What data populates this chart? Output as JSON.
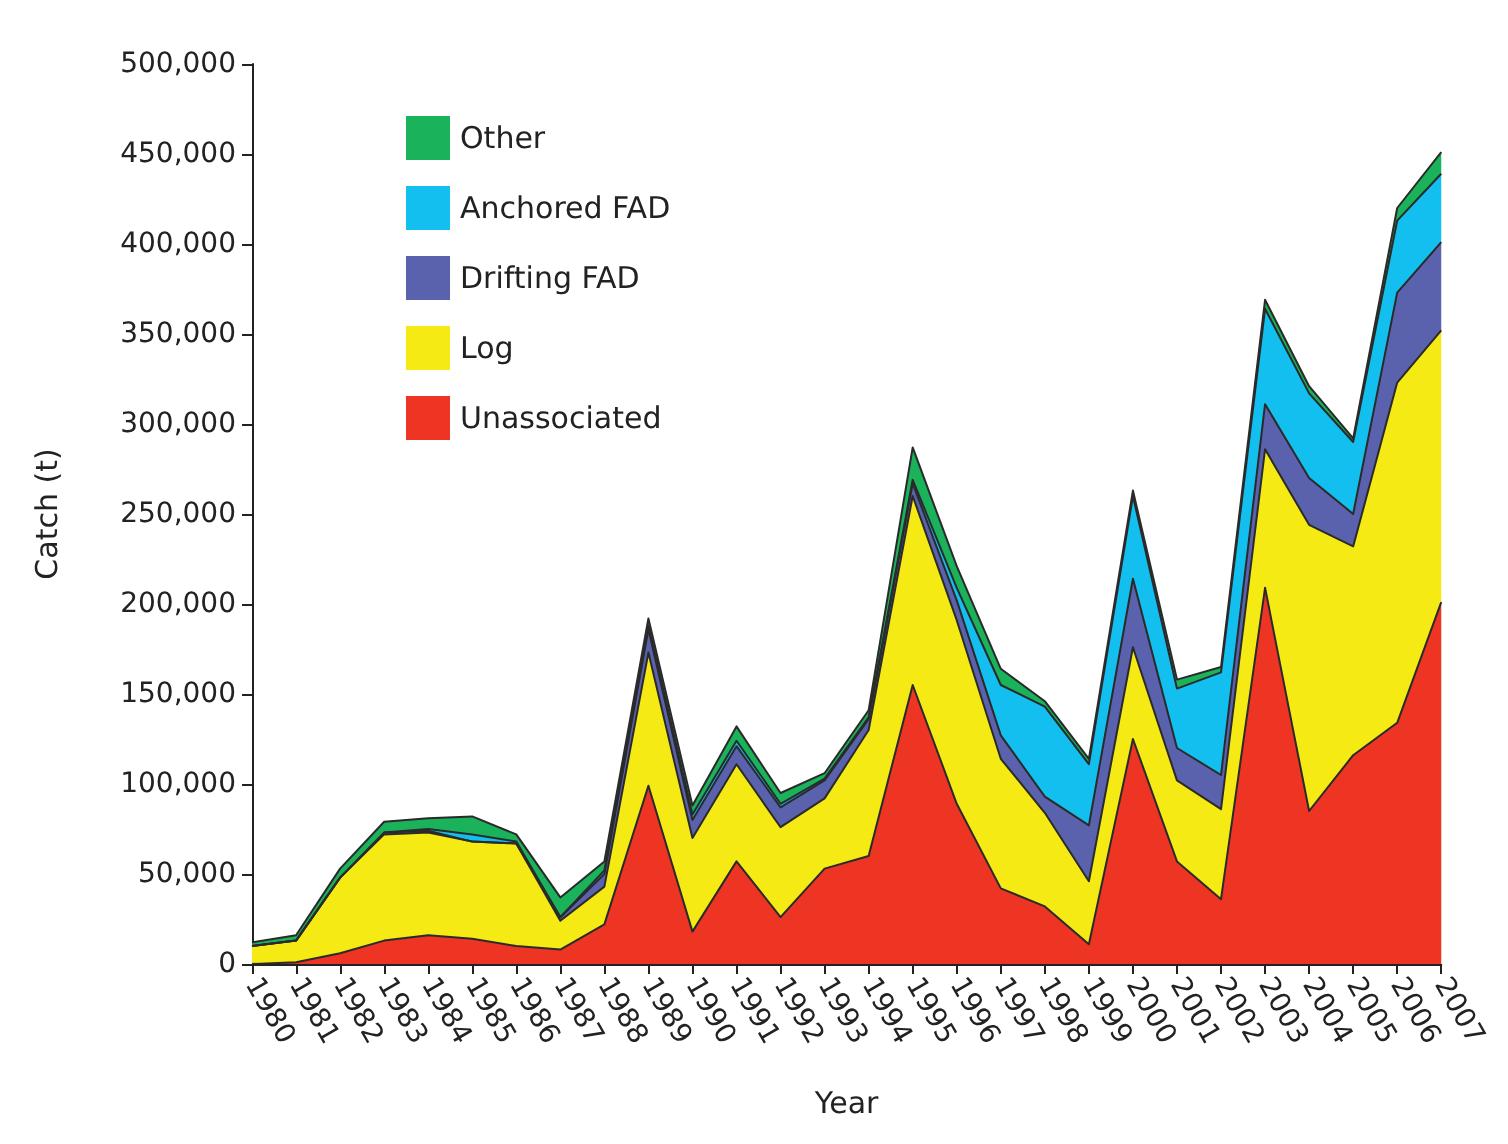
{
  "chart_data": {
    "type": "area",
    "stacked": true,
    "xlabel": "Year",
    "ylabel": "Catch (t)",
    "categories": [
      "1980",
      "1981",
      "1982",
      "1983",
      "1984",
      "1985",
      "1986",
      "1987",
      "1988",
      "1989",
      "1990",
      "1991",
      "1992",
      "1993",
      "1994",
      "1995",
      "1996",
      "1997",
      "1998",
      "1999",
      "2000",
      "2001",
      "2002",
      "2003",
      "2004",
      "2005",
      "2006",
      "2007"
    ],
    "series": [
      {
        "name": "Unassociated",
        "color": "#ee3524",
        "values": [
          0,
          1000,
          6000,
          13000,
          16000,
          14000,
          10000,
          8000,
          22000,
          99000,
          18000,
          57000,
          26000,
          53000,
          60000,
          155000,
          89000,
          42000,
          32000,
          11000,
          125000,
          57000,
          36000,
          209000,
          85000,
          116000,
          134000,
          201000
        ]
      },
      {
        "name": "Log",
        "color": "#f5ea14",
        "values": [
          10000,
          12000,
          42000,
          59000,
          57000,
          54000,
          57000,
          16000,
          21000,
          74000,
          52000,
          54000,
          50000,
          39000,
          70000,
          105000,
          102000,
          72000,
          52000,
          35000,
          51000,
          45000,
          50000,
          77000,
          159000,
          116000,
          189000,
          151000
        ]
      },
      {
        "name": "Drifting FAD",
        "color": "#5b62ad",
        "values": [
          0,
          0,
          0,
          1000,
          1000,
          0,
          0,
          2000,
          7000,
          13000,
          10000,
          10000,
          11000,
          10000,
          6000,
          7000,
          11000,
          13000,
          9000,
          31000,
          38000,
          18000,
          19000,
          25000,
          26000,
          18000,
          50000,
          49000
        ]
      },
      {
        "name": "Anchored FAD",
        "color": "#12bfee",
        "values": [
          0,
          0,
          0,
          0,
          1000,
          4000,
          1000,
          0,
          2000,
          2000,
          3000,
          3000,
          2000,
          1000,
          1000,
          2000,
          7000,
          28000,
          50000,
          34000,
          46000,
          33000,
          57000,
          53000,
          47000,
          40000,
          40000,
          38000
        ]
      },
      {
        "name": "Other",
        "color": "#1ab25a",
        "values": [
          2000,
          3000,
          5000,
          6000,
          6000,
          10000,
          4000,
          11000,
          5000,
          4000,
          5000,
          8000,
          6000,
          3000,
          4000,
          18000,
          12000,
          9000,
          3000,
          3000,
          3000,
          5000,
          3000,
          5000,
          4000,
          2000,
          7000,
          12000
        ]
      }
    ],
    "ylim": [
      0,
      500000
    ],
    "yticks": [
      {
        "value": 0,
        "label": "0"
      },
      {
        "value": 50000,
        "label": "50,000"
      },
      {
        "value": 100000,
        "label": "100,000"
      },
      {
        "value": 150000,
        "label": "150,000"
      },
      {
        "value": 200000,
        "label": "200,000"
      },
      {
        "value": 250000,
        "label": "250,000"
      },
      {
        "value": 300000,
        "label": "300,000"
      },
      {
        "value": 350000,
        "label": "350,000"
      },
      {
        "value": 400000,
        "label": "400,000"
      },
      {
        "value": 450000,
        "label": "450,000"
      },
      {
        "value": 500000,
        "label": "500,000"
      }
    ],
    "grid": false,
    "legend": "top left",
    "marker": "none"
  }
}
